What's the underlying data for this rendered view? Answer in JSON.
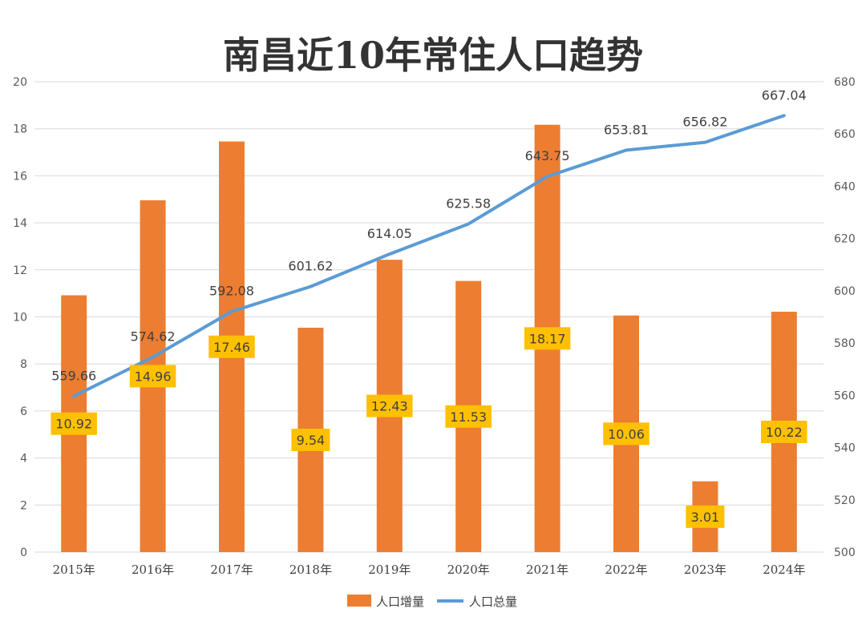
{
  "chart_data": {
    "type": "bar+line",
    "title": "南昌近10年常住人口趋势",
    "categories": [
      "2015年",
      "2016年",
      "2017年",
      "2018年",
      "2019年",
      "2020年",
      "2021年",
      "2022年",
      "2023年",
      "2024年"
    ],
    "series": [
      {
        "name": "人口增量",
        "type": "bar",
        "axis": "left",
        "color": "#ED7D31",
        "label_bg": "#FFC000",
        "values": [
          10.92,
          14.96,
          17.46,
          9.54,
          12.43,
          11.53,
          18.17,
          10.06,
          3.01,
          10.22
        ],
        "labels": [
          "10.92",
          "14.96",
          "17.46",
          "9.54",
          "12.43",
          "11.53",
          "18.17",
          "10.06",
          "3.01",
          "10.22"
        ]
      },
      {
        "name": "人口总量",
        "type": "line",
        "axis": "right",
        "color": "#5B9BD5",
        "values": [
          559.66,
          574.62,
          592.08,
          601.62,
          614.05,
          625.58,
          643.75,
          653.81,
          656.82,
          667.04
        ],
        "labels": [
          "559.66",
          "574.62",
          "592.08",
          "601.62",
          "614.05",
          "625.58",
          "643.75",
          "653.81",
          "656.82",
          "667.04"
        ]
      }
    ],
    "y_left": {
      "range": [
        0,
        20
      ],
      "ticks": [
        "0",
        "2",
        "4",
        "6",
        "8",
        "10",
        "12",
        "14",
        "16",
        "18",
        "20"
      ]
    },
    "y_right": {
      "range": [
        500,
        680
      ],
      "ticks": [
        "500",
        "520",
        "540",
        "560",
        "580",
        "600",
        "620",
        "640",
        "660",
        "680"
      ]
    },
    "grid": true,
    "legend": "bottom-center"
  }
}
